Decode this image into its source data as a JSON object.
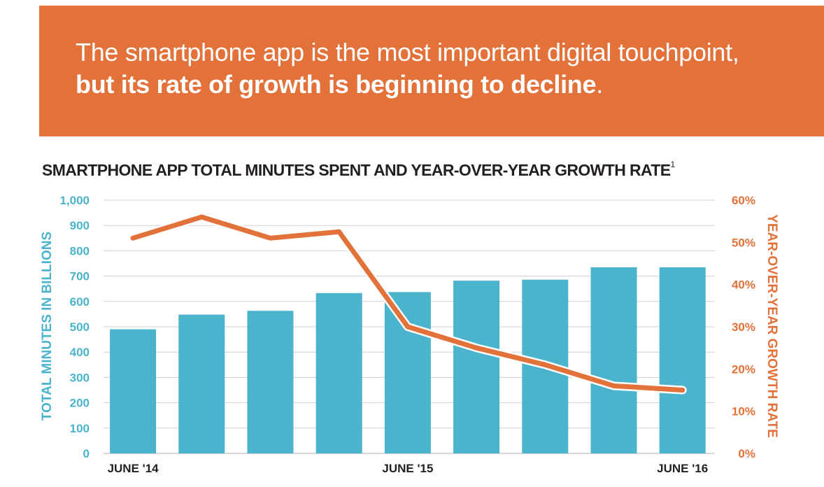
{
  "banner": {
    "headline_line1": "The smartphone app is the most important digital touchpoint,",
    "headline_line2": "but its rate of growth is beginning to decline",
    "headline_period": ".",
    "color": "#e2713a"
  },
  "chart_data": {
    "type": "bar+line",
    "title": "SMARTPHONE APP TOTAL MINUTES SPENT AND YEAR-OVER-YEAR GROWTH RATE",
    "title_footnote": "1",
    "categories": [
      "June '14",
      "",
      "",
      "",
      "June '15",
      "",
      "",
      "",
      "June '16"
    ],
    "x_tick_labels": [
      "JUNE '14",
      "JUNE '15",
      "JUNE '16"
    ],
    "series": [
      {
        "name": "Total Minutes in Billions",
        "type": "bar",
        "axis": "left",
        "color": "#4bb3cb",
        "values": [
          490,
          548,
          563,
          633,
          637,
          682,
          686,
          735,
          735
        ]
      },
      {
        "name": "Year-Over-Year Growth Rate",
        "type": "line",
        "axis": "right",
        "color": "#e2713a",
        "values": [
          51,
          56,
          51,
          52.5,
          30,
          25,
          21,
          16,
          15
        ]
      }
    ],
    "ylabel_left": "TOTAL MINUTES IN BILLIONS",
    "ylim_left": [
      0,
      1000
    ],
    "y_ticks_left": [
      "0",
      "100",
      "200",
      "300",
      "400",
      "500",
      "600",
      "700",
      "800",
      "900",
      "1,000"
    ],
    "ylabel_right": "YEAR-OVER-YEAR GROWTH RATE",
    "ylim_right": [
      0,
      60
    ],
    "y_ticks_right": [
      "0%",
      "10%",
      "20%",
      "30%",
      "40%",
      "50%",
      "60%"
    ],
    "grid": true,
    "left_axis_color": "#4bb3cb",
    "right_axis_color": "#e2713a"
  }
}
